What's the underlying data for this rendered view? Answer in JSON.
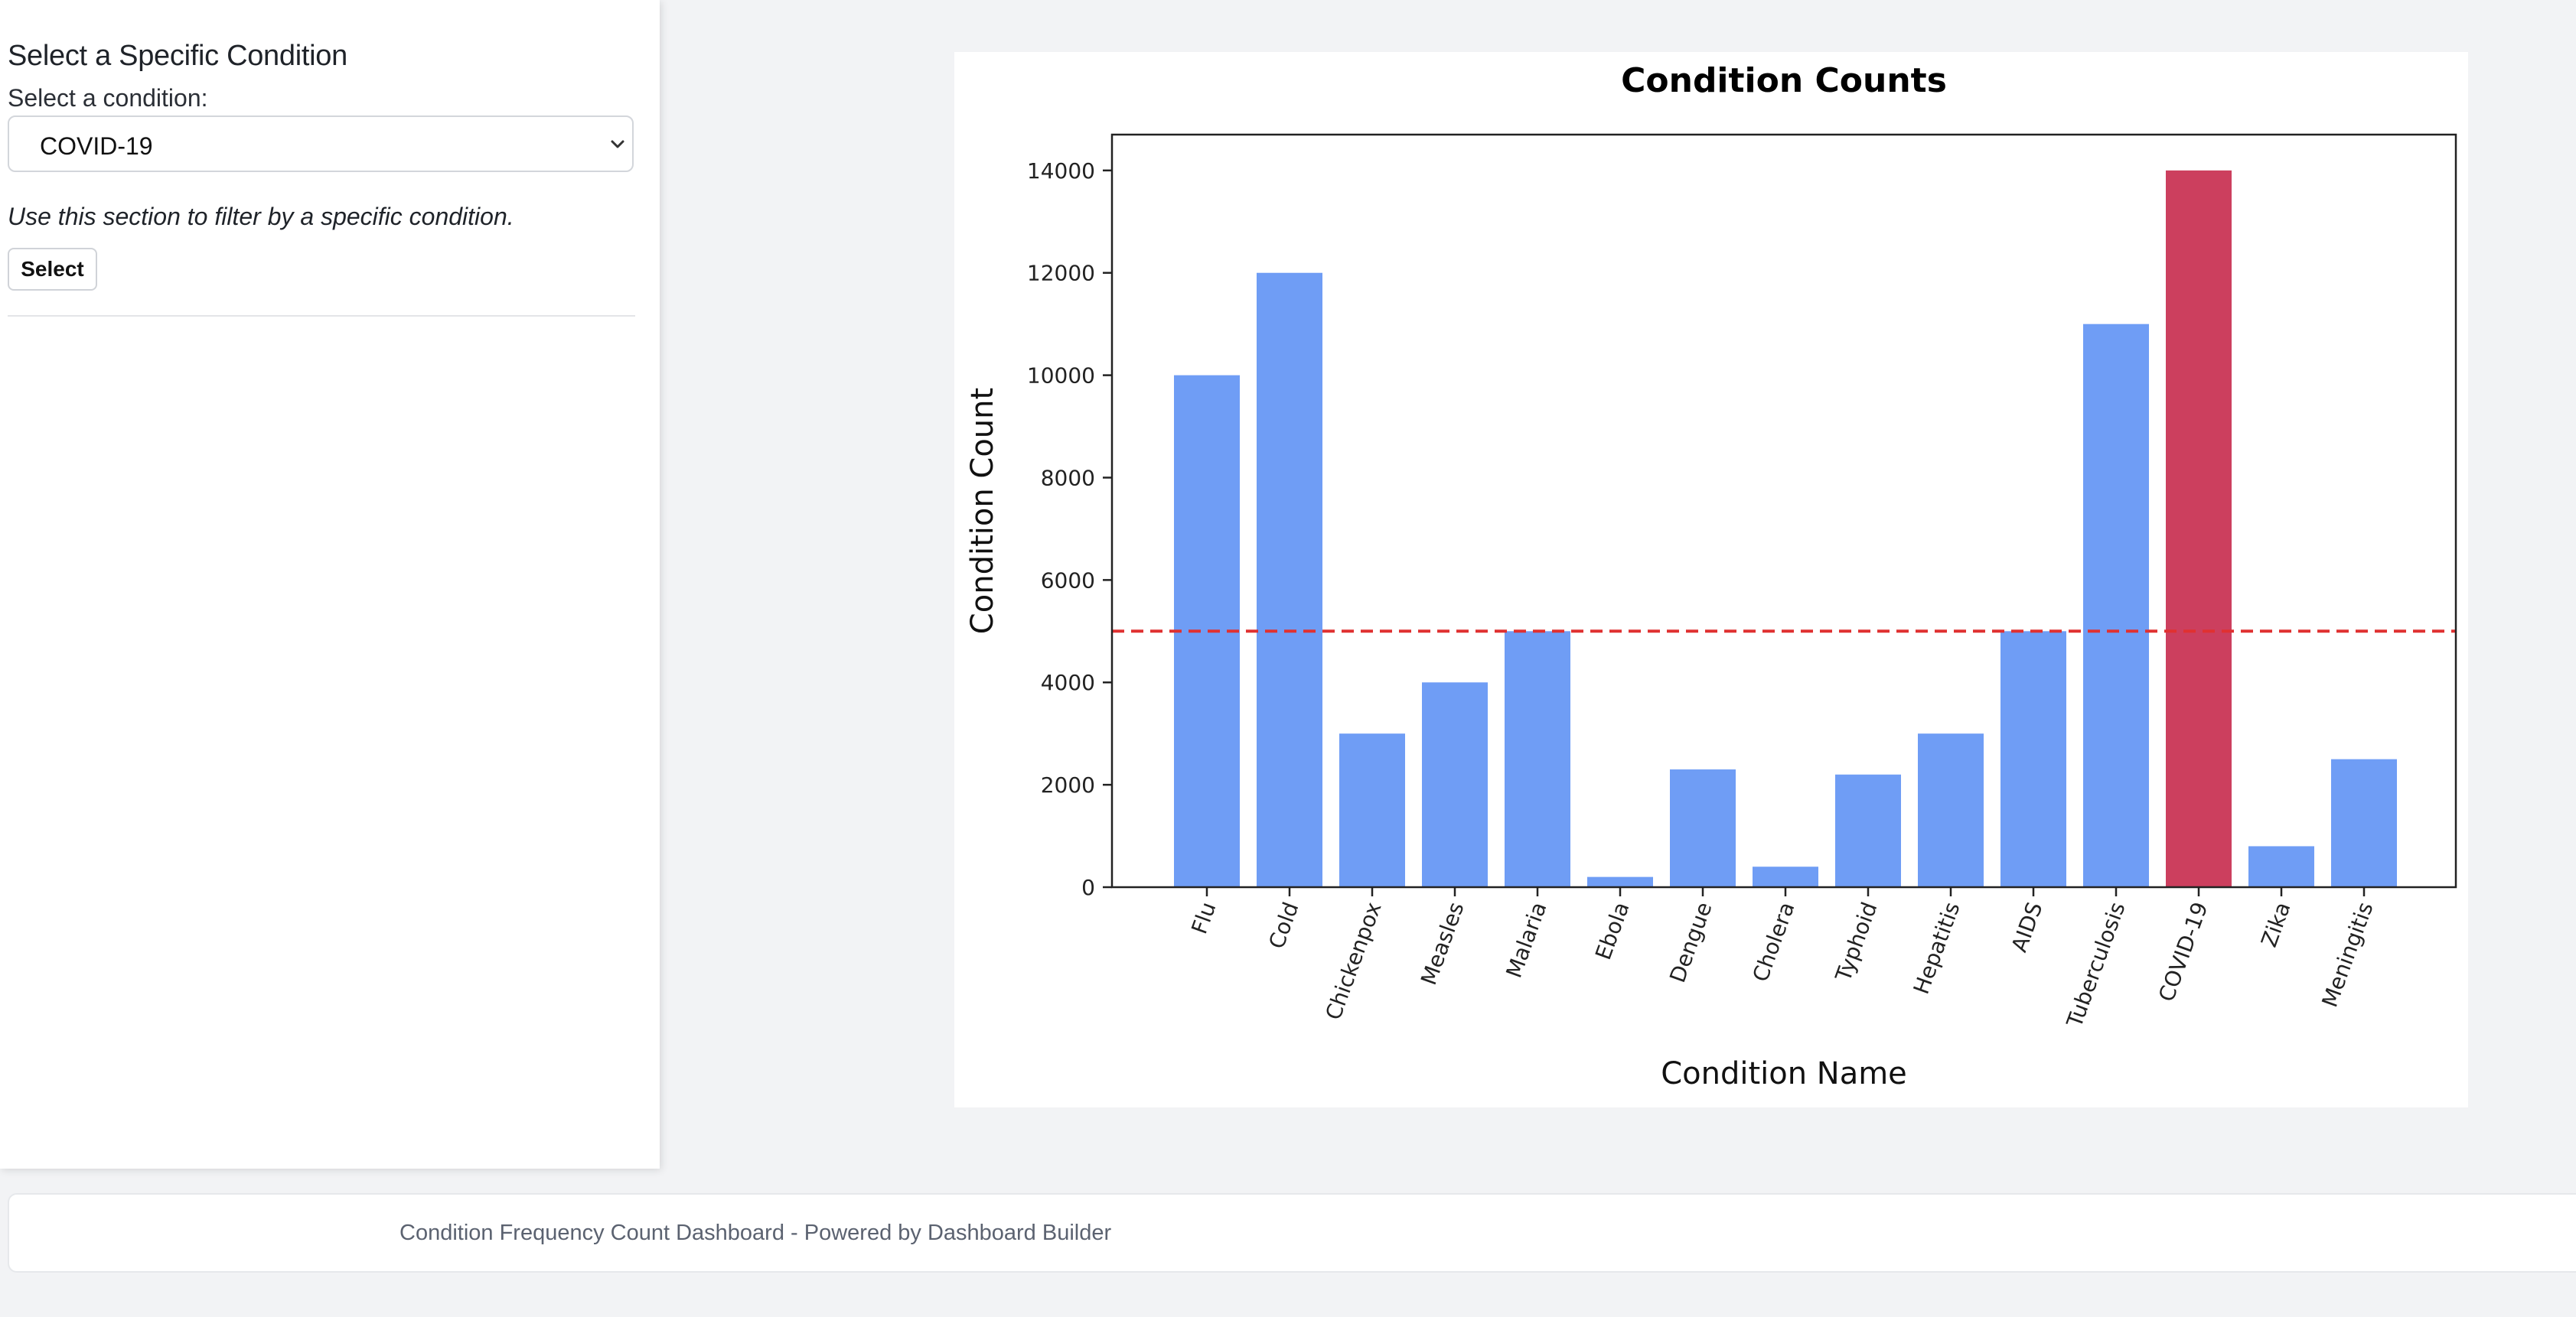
{
  "sidebar": {
    "title": "Select a Specific Condition",
    "select_label": "Select a condition:",
    "selected_condition": "COVID-19",
    "help_text": "Use this section to filter by a specific condition.",
    "select_button_label": "Select"
  },
  "footer": {
    "text": "Condition Frequency Count Dashboard - Powered by Dashboard Builder"
  },
  "chart_data": {
    "type": "bar",
    "title": "Condition Counts",
    "xlabel": "Condition Name",
    "ylabel": "Condition Count",
    "categories": [
      "Flu",
      "Cold",
      "Chickenpox",
      "Measles",
      "Malaria",
      "Ebola",
      "Dengue",
      "Cholera",
      "Typhoid",
      "Hepatitis",
      "AIDS",
      "Tuberculosis",
      "COVID-19",
      "Zika",
      "Meningitis"
    ],
    "values": [
      10000,
      12000,
      3000,
      4000,
      5000,
      200,
      2300,
      400,
      2200,
      3000,
      5000,
      11000,
      14000,
      800,
      2500
    ],
    "ylim": [
      0,
      14700
    ],
    "yticks": [
      0,
      2000,
      4000,
      6000,
      8000,
      10000,
      12000,
      14000
    ],
    "threshold": 5000,
    "highlighted_category": "COVID-19",
    "bar_color": "#6f9df5",
    "highlight_color": "#cc3f5e",
    "threshold_color": "#e03131",
    "grid": false
  }
}
